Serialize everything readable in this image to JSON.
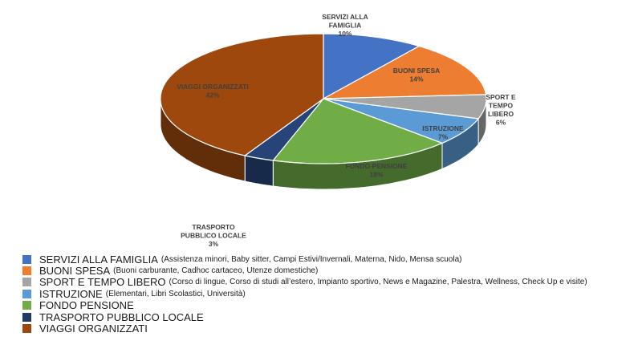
{
  "chart_data": {
    "type": "pie",
    "title": "",
    "slices": [
      {
        "label": "SERVIZI ALLA FAMIGLIA",
        "label_lines": [
          "SERVIZI ALLA",
          "FAMIGLIA"
        ],
        "value": 10,
        "value_label": "10%",
        "color": "#4472C4"
      },
      {
        "label": "BUONI SPESA",
        "label_lines": [
          "BUONI SPESA"
        ],
        "value": 14,
        "value_label": "14%",
        "color": "#ED7D31"
      },
      {
        "label": "SPORT E TEMPO LIBERO",
        "label_lines": [
          "SPORT E",
          "TEMPO",
          "LIBERO"
        ],
        "value": 6,
        "value_label": "6%",
        "color": "#A5A5A5"
      },
      {
        "label": "ISTRUZIONE",
        "label_lines": [
          "ISTRUZIONE"
        ],
        "value": 7,
        "value_label": "7%",
        "color": "#5B9BD5"
      },
      {
        "label": "FONDO PENSIONE",
        "label_lines": [
          "FONDO PENSIONE"
        ],
        "value": 18,
        "value_label": "18%",
        "color": "#70AD47"
      },
      {
        "label": "TRASPORTO PUBBLICO LOCALE",
        "label_lines": [
          "TRASPORTO",
          "PUBBLICO LOCALE"
        ],
        "value": 3,
        "value_label": "3%",
        "color": "#264478"
      },
      {
        "label": "VIAGGI ORGANIZZATI",
        "label_lines": [
          "VIAGGI ORGANIZZATI"
        ],
        "value": 42,
        "value_label": "42%",
        "color": "#9E480E"
      }
    ],
    "legend": {
      "position": "bottom-left",
      "items": [
        {
          "name": "SERVIZI ALLA FAMIGLIA",
          "detail": "(Assistenza minori, Baby sitter, Campi Estivi/Invernali, Materna, Nido, Mensa scuola)",
          "color": "#4472C4"
        },
        {
          "name": "BUONI SPESA",
          "detail": "(Buoni carburante, Cadhoc cartaceo, Utenze domestiche)",
          "color": "#ED7D31"
        },
        {
          "name": "SPORT E TEMPO LIBERO",
          "detail": "(Corso di lingue, Corso di studi all’estero, Impianto sportivo, News e Magazine, Palestra, Wellness, Check Up e visite)",
          "color": "#A5A5A5"
        },
        {
          "name": "ISTRUZIONE",
          "detail": "(Elementari, Libri Scolastici, Università)",
          "color": "#5B9BD5"
        },
        {
          "name": "FONDO PENSIONE",
          "detail": "",
          "color": "#70AD47"
        },
        {
          "name": "TRASPORTO PUBBLICO LOCALE",
          "detail": "",
          "color": "#1F3864"
        },
        {
          "name": "VIAGGI ORGANIZZATI",
          "detail": "",
          "color": "#9E480E"
        }
      ]
    }
  }
}
